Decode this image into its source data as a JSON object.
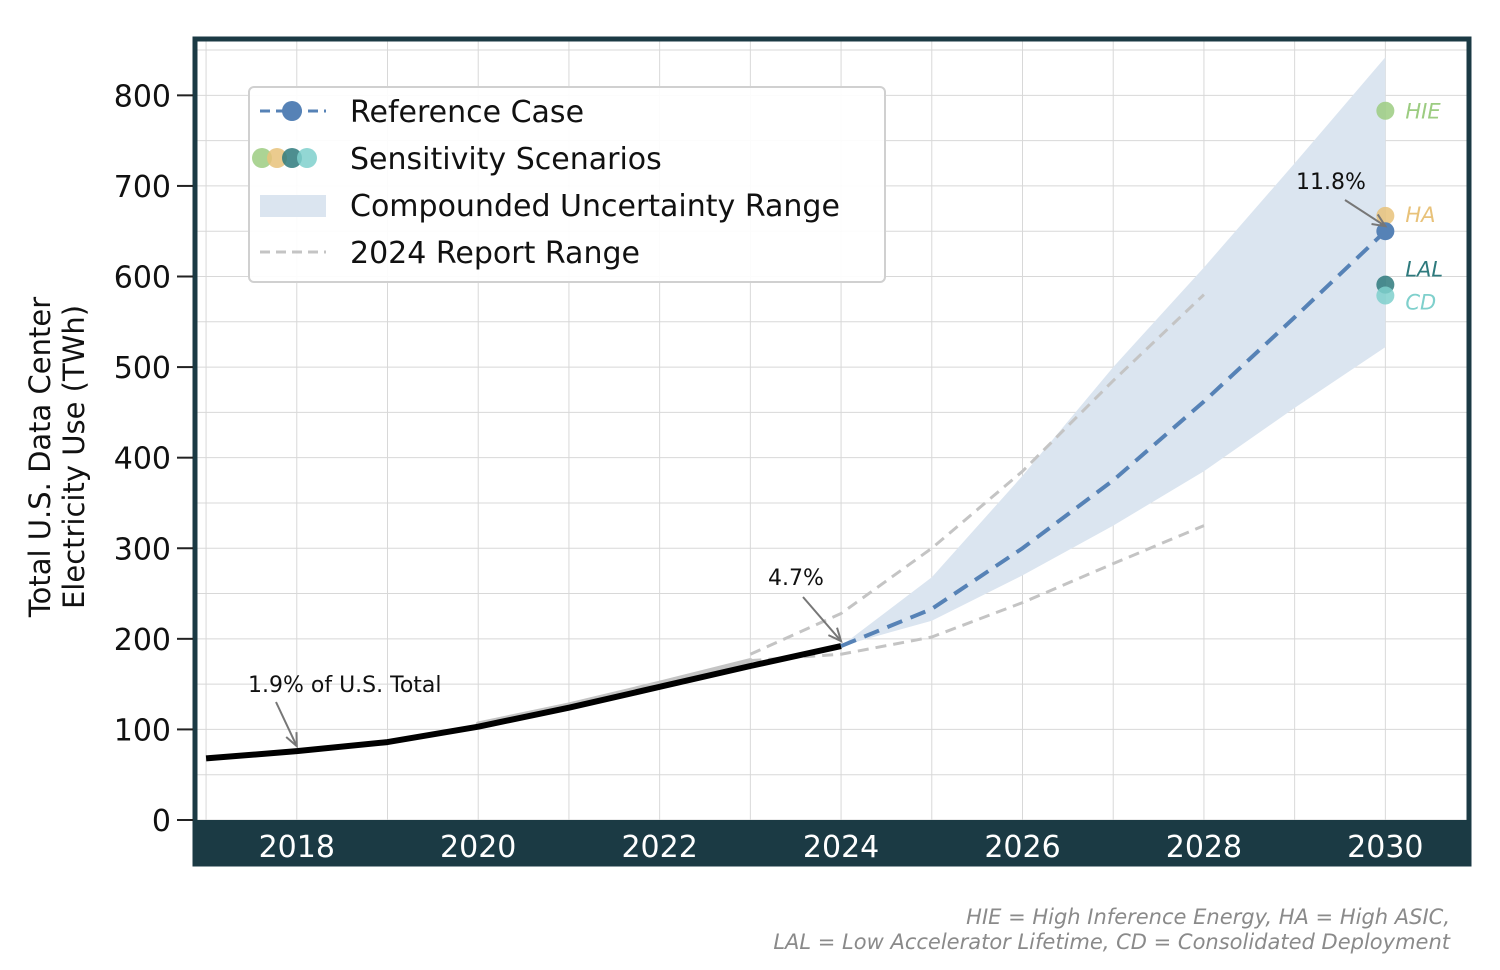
{
  "chart_data": {
    "type": "line",
    "ylabel_lines": [
      "Total U.S. Data Center",
      "Electricity Use (TWh)"
    ],
    "xlim": [
      2016.9,
      2030.9
    ],
    "ylim": [
      0,
      860
    ],
    "x_ticks": [
      "2018",
      "2020",
      "2022",
      "2024",
      "2026",
      "2028",
      "2030"
    ],
    "y_ticks": [
      "0",
      "100",
      "200",
      "300",
      "400",
      "500",
      "600",
      "700",
      "800"
    ],
    "grid": true,
    "legend_position": "upper-left",
    "historical": {
      "x": [
        2017,
        2018,
        2019,
        2020,
        2021,
        2022,
        2023,
        2024
      ],
      "y": [
        68,
        76,
        86,
        103,
        124,
        147,
        170,
        192
      ]
    },
    "report_2024_history": {
      "x": [
        2020,
        2021,
        2022,
        2023
      ],
      "y": [
        106,
        127,
        151,
        176
      ]
    },
    "reference_case": {
      "name": "Reference Case",
      "x": [
        2024,
        2025,
        2026,
        2027,
        2028,
        2029,
        2030
      ],
      "y": [
        192,
        233,
        300,
        375,
        462,
        555,
        650
      ]
    },
    "uncertainty_range": {
      "name": "Compounded Uncertainty Range",
      "x": [
        2024,
        2025,
        2026,
        2027,
        2028,
        2029,
        2030
      ],
      "lower": [
        192,
        220,
        270,
        325,
        385,
        455,
        522
      ],
      "upper": [
        192,
        268,
        380,
        500,
        610,
        725,
        842
      ]
    },
    "report_2024_range": {
      "name": "2024 Report Range",
      "lower": {
        "x": [
          2023,
          2024,
          2025,
          2026,
          2027,
          2028
        ],
        "y": [
          176,
          183,
          202,
          240,
          283,
          325
        ]
      },
      "upper": {
        "x": [
          2023,
          2024,
          2025,
          2026,
          2027,
          2028
        ],
        "y": [
          183,
          228,
          300,
          385,
          485,
          580
        ]
      }
    },
    "sensitivity_name": "Sensitivity Scenarios",
    "sensitivity_scenarios": [
      {
        "label": "HIE",
        "x": 2030,
        "y": 783,
        "color": "#9ccc81"
      },
      {
        "label": "HA",
        "x": 2030,
        "y": 667,
        "color": "#e8c27a"
      },
      {
        "label": "LAL",
        "x": 2030,
        "y": 591,
        "color": "#2e7a7d"
      },
      {
        "label": "CD",
        "x": 2030,
        "y": 579,
        "color": "#7fd0cc"
      }
    ],
    "annotations": [
      {
        "text": "1.9% of U.S. Total",
        "target_x": 2018,
        "target_y": 76
      },
      {
        "text": "4.7%",
        "target_x": 2024,
        "target_y": 192
      },
      {
        "text": "11.8%",
        "target_x": 2030,
        "target_y": 650
      }
    ],
    "colors": {
      "frame": "#1b3a44",
      "historical": "#000000",
      "report_history": "#c4c4c4",
      "reference": "#5682b6",
      "uncertainty": "#dbe5f0",
      "report_range": "#c4c4c4",
      "grid": "#d8d8d8"
    }
  },
  "footnote": {
    "line1": "HIE = High Inference Energy, HA = High ASIC,",
    "line2": "LAL = Low Accelerator Lifetime, CD = Consolidated Deployment"
  }
}
